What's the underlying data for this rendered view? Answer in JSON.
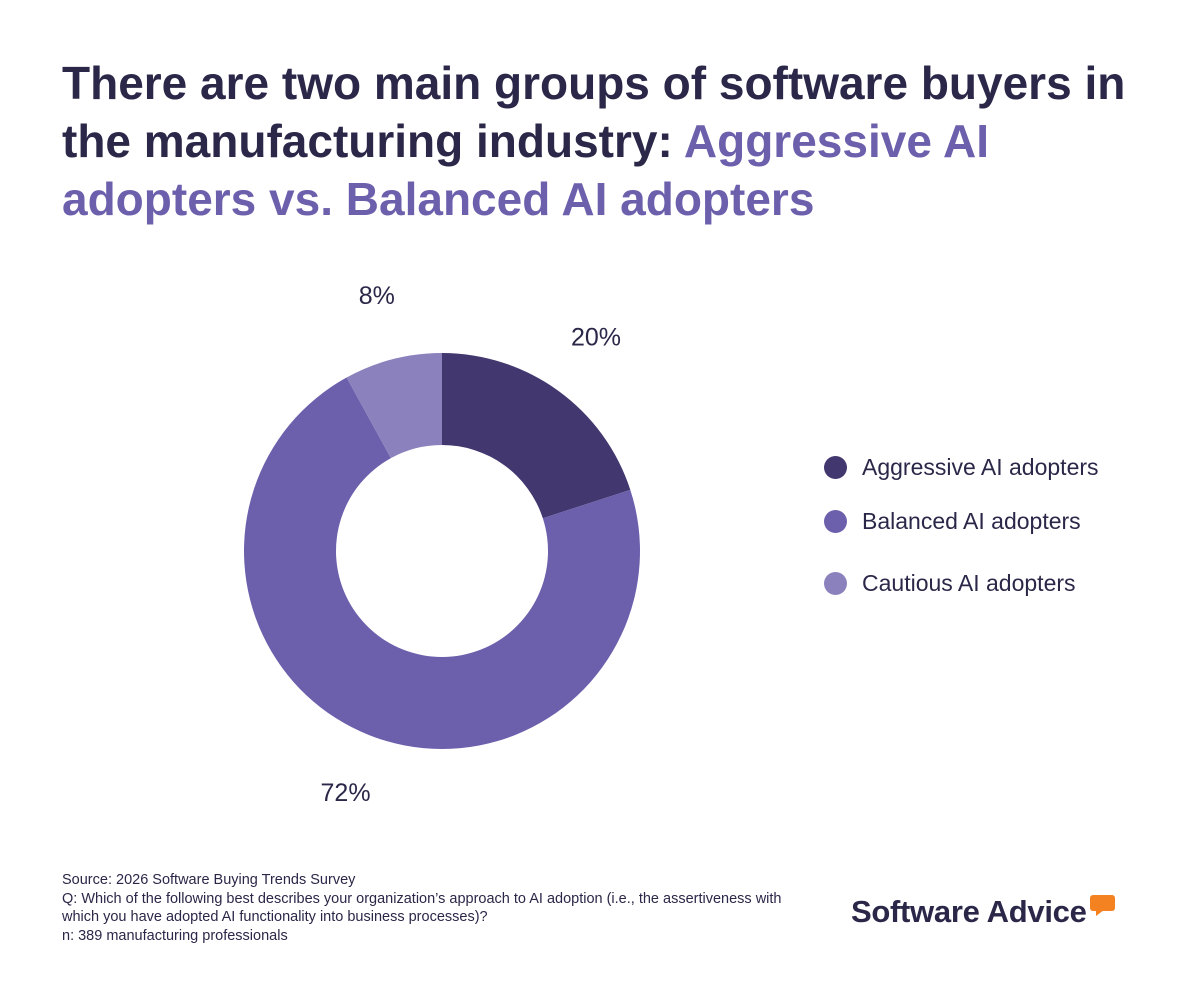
{
  "title": {
    "part1": "There are two main groups of software buyers in the manufacturing industry: ",
    "part2": "Aggressive AI adopters vs. Balanced AI adopters"
  },
  "chart_data": {
    "type": "pie",
    "variant": "donut",
    "categories": [
      "Aggressive AI adopters",
      "Balanced AI adopters",
      "Cautious AI adopters"
    ],
    "values": [
      20,
      72,
      8
    ],
    "labels": [
      "20%",
      "72%",
      "8%"
    ],
    "colors": [
      "#42376e",
      "#6c60ad",
      "#8b82bd"
    ],
    "legend_position": "right"
  },
  "legend": {
    "items": [
      {
        "label": "Aggressive AI adopters",
        "color": "#42376e"
      },
      {
        "label": "Balanced AI adopters",
        "color": "#6c60ad"
      },
      {
        "label": "Cautious AI adopters",
        "color": "#8b82bd"
      }
    ]
  },
  "footer": {
    "source": "Source: 2026 Software Buying Trends Survey",
    "question": "Q: Which of the following best describes your organization’s approach to AI adoption (i.e., the assertiveness with which you have adopted AI functionality into business processes)?",
    "sample": "n: 389 manufacturing professionals"
  },
  "brand": {
    "name": "Software Advice",
    "accent_color": "#f58220",
    "icon": "speech-bubble-icon"
  }
}
